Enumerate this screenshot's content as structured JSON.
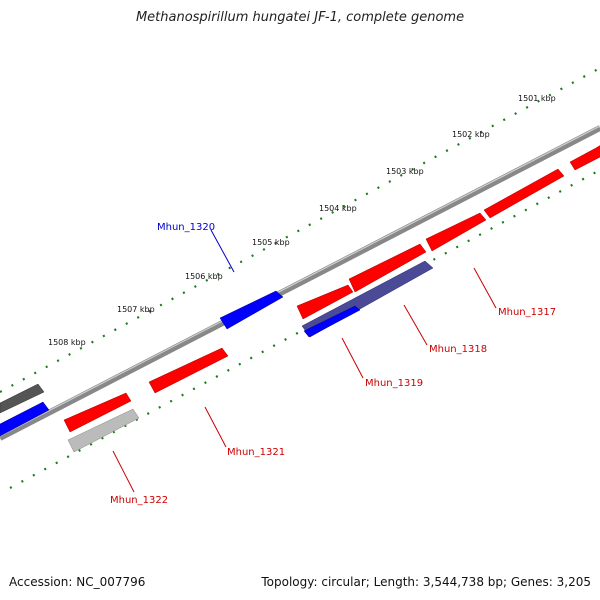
{
  "title": "Methanospirillum hungatei JF-1, complete genome",
  "footer": {
    "accession": "Accession: NC_007796",
    "summary": "Topology: circular; Length: 3,544,738 bp; Genes: 3,205"
  },
  "scale_labels": [
    "1501 kbp",
    "1502 kbp",
    "1503 kbp",
    "1504 kbp",
    "1505 kbp",
    "1506 kbp",
    "1507 kbp",
    "1508 kbp"
  ],
  "colors": {
    "forward": "#ff0000",
    "reverse": "#0000ff",
    "forward_label": "#cc0000",
    "reverse_label": "#0000cc",
    "highlight_dark": "#4a4a96",
    "gray": "#555555",
    "light_gray": "#bbbbbb",
    "tick": "#1f7a1f",
    "backbone": "#888888"
  },
  "genes": [
    {
      "id": "Mhun_1317",
      "label": "Mhun_1317",
      "strand": "forward"
    },
    {
      "id": "Mhun_1318",
      "label": "Mhun_1318",
      "strand": "forward"
    },
    {
      "id": "Mhun_1319",
      "label": "Mhun_1319",
      "strand": "forward"
    },
    {
      "id": "Mhun_1320",
      "label": "Mhun_1320",
      "strand": "reverse"
    },
    {
      "id": "Mhun_1321",
      "label": "Mhun_1321",
      "strand": "forward"
    },
    {
      "id": "Mhun_1322",
      "label": "Mhun_1322",
      "strand": "forward"
    }
  ]
}
